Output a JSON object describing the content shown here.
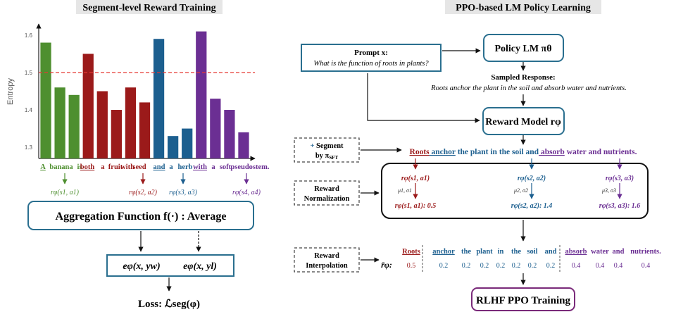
{
  "left_title": "Segment-level Reward Training",
  "right_title": "PPO-based LM Policy Learning",
  "colors": {
    "green": "#4e8f2f",
    "red": "#9b1a1a",
    "blue": "#1c5f8f",
    "purple": "#6b2f93",
    "box_blue": "#2a6f8f",
    "box_purple": "#7a2a7a",
    "threshold": "#e53935"
  },
  "chart_data": {
    "type": "bar",
    "ylabel": "Entropy",
    "ylim": [
      1.27,
      1.63
    ],
    "yticks": [
      "1.3",
      "1.4",
      "1.5",
      "1.6"
    ],
    "threshold": 1.5,
    "values": [
      1.58,
      1.46,
      1.44,
      1.55,
      1.45,
      1.4,
      1.46,
      1.42,
      1.59,
      1.33,
      1.35,
      1.61,
      1.43,
      1.4,
      1.34
    ],
    "colors": [
      "green",
      "green",
      "green",
      "red",
      "red",
      "red",
      "red",
      "red",
      "blue",
      "blue",
      "blue",
      "purple",
      "purple",
      "purple",
      "purple"
    ]
  },
  "tokens": [
    {
      "text": "A",
      "color": "green",
      "underline": true
    },
    {
      "text": "banana",
      "color": "green"
    },
    {
      "text": "is",
      "color": "green"
    },
    {
      "text": "both",
      "color": "red",
      "underline": true
    },
    {
      "text": "a",
      "color": "red"
    },
    {
      "text": "fruit",
      "color": "red"
    },
    {
      "text": "with",
      "color": "red"
    },
    {
      "text": "seed",
      "color": "red"
    },
    {
      "text": "and",
      "color": "blue",
      "underline": true
    },
    {
      "text": "a",
      "color": "blue"
    },
    {
      "text": "herb",
      "color": "blue"
    },
    {
      "text": "with",
      "color": "purple",
      "underline": true
    },
    {
      "text": "a",
      "color": "purple"
    },
    {
      "text": "soft",
      "color": "purple"
    },
    {
      "text": "pseudostem.",
      "color": "purple"
    }
  ],
  "segment_rewards": [
    {
      "label": "rφ(s1, a1)",
      "color": "green"
    },
    {
      "label": "rφ(s2, a2)",
      "color": "red"
    },
    {
      "label": "rφ(s3, a3)",
      "color": "blue"
    },
    {
      "label": "rφ(s4, a4)",
      "color": "purple"
    }
  ],
  "aggregation": "Aggregation Function f(·) : Average",
  "e_w": "eφ(x, yw)",
  "e_l": "eφ(x, yl)",
  "loss": "Loss: ℒseg(φ)",
  "prompt_label": "Prompt x:",
  "prompt_text": "What is the function of roots in plants?",
  "policy_label": "Policy LM πθ",
  "sampled_label": "Sampled Response:",
  "sampled_text": "Roots anchor the plant in the soil and absorb water and nutrients.",
  "reward_model_label": "Reward Model rφ",
  "segment_box": "Segment by πSFT",
  "segmented_sentence": [
    {
      "text": "Roots",
      "color": "red",
      "underline": true
    },
    {
      "text": "anchor",
      "color": "blue",
      "underline": true
    },
    {
      "text": "the plant in the soil and",
      "color": "blue"
    },
    {
      "text": "absorb",
      "color": "purple",
      "underline": true
    },
    {
      "text": "water and nutrients.",
      "color": "purple"
    }
  ],
  "norm_box": "Reward Normalization",
  "norm_columns": [
    {
      "top": "rφ(s1, a1)",
      "mu": "μ1, σ1",
      "bottom": "rφ(s1, a1): 0.5",
      "color": "red"
    },
    {
      "top": "rφ(s2, a2)",
      "mu": "μ2, σ2",
      "bottom": "rφ(s2, a2): 1.4",
      "color": "blue"
    },
    {
      "top": "rφ(s3, a3)",
      "mu": "μ3, σ3",
      "bottom": "rφ(s3, a3): 1.6",
      "color": "purple"
    }
  ],
  "interp_box": "Reward Interpolation",
  "interp_symbol": "r̃φ:",
  "interp_words": [
    {
      "text": "Roots",
      "value": "0.5",
      "color": "red",
      "underline": true
    },
    {
      "text": "anchor",
      "value": "0.2",
      "color": "blue",
      "underline": true
    },
    {
      "text": "the",
      "value": "0.2",
      "color": "blue"
    },
    {
      "text": "plant",
      "value": "0.2",
      "color": "blue"
    },
    {
      "text": "in",
      "value": "0.2",
      "color": "blue"
    },
    {
      "text": "the",
      "value": "0.2",
      "color": "blue"
    },
    {
      "text": "soil",
      "value": "0.2",
      "color": "blue"
    },
    {
      "text": "and",
      "value": "0.2",
      "color": "blue"
    },
    {
      "text": "absorb",
      "value": "0.4",
      "color": "purple",
      "underline": true
    },
    {
      "text": "water",
      "value": "0.4",
      "color": "purple"
    },
    {
      "text": "and",
      "value": "0.4",
      "color": "purple"
    },
    {
      "text": "nutrients.",
      "value": "0.4",
      "color": "purple"
    }
  ],
  "rlhf_label": "RLHF PPO Training"
}
